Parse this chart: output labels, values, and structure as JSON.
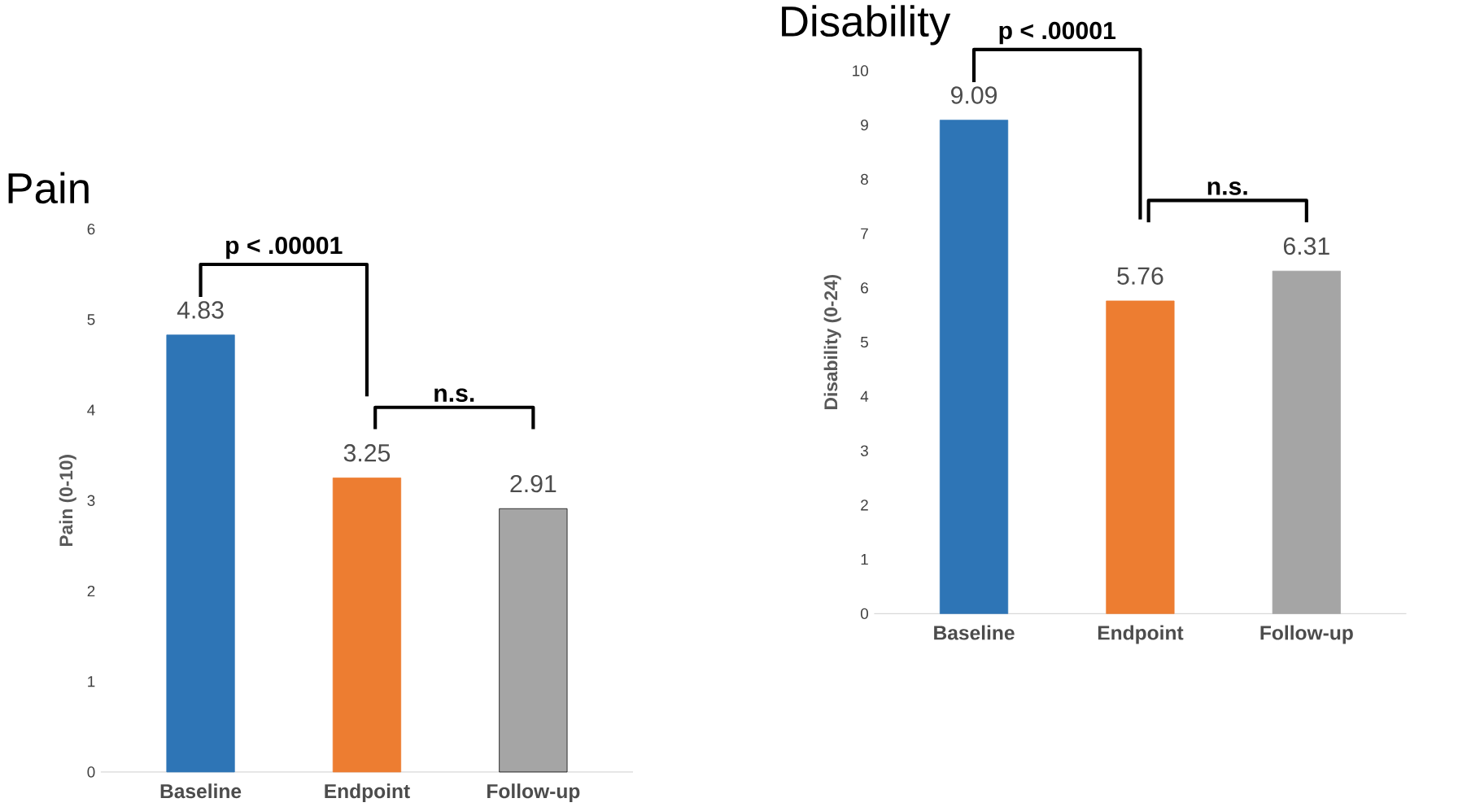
{
  "chart_data": [
    {
      "type": "bar",
      "title": "Pain",
      "ylabel": "Pain (0-10)",
      "categories": [
        "Baseline",
        "Endpoint",
        "Follow-up"
      ],
      "values": [
        4.83,
        3.25,
        2.91
      ],
      "colors": [
        "#2e75b6",
        "#ed7d31",
        "#a5a5a5"
      ],
      "value_labels": [
        "4.83",
        "3.25",
        "2.91"
      ],
      "ylim": [
        0,
        6
      ],
      "yticks": [
        0,
        1,
        2,
        3,
        4,
        5,
        6
      ],
      "annotations": [
        "p < .00001",
        "n.s."
      ]
    },
    {
      "type": "bar",
      "title": "Disability",
      "ylabel": "Disability (0-24)",
      "categories": [
        "Baseline",
        "Endpoint",
        "Follow-up"
      ],
      "values": [
        9.09,
        5.76,
        6.31
      ],
      "colors": [
        "#2e75b6",
        "#ed7d31",
        "#a5a5a5"
      ],
      "value_labels": [
        "9.09",
        "5.76",
        "6.31"
      ],
      "ylim": [
        0,
        10
      ],
      "yticks": [
        0,
        1,
        2,
        3,
        4,
        5,
        6,
        7,
        8,
        9,
        10
      ],
      "annotations": [
        "p < .00001",
        "n.s."
      ]
    }
  ]
}
